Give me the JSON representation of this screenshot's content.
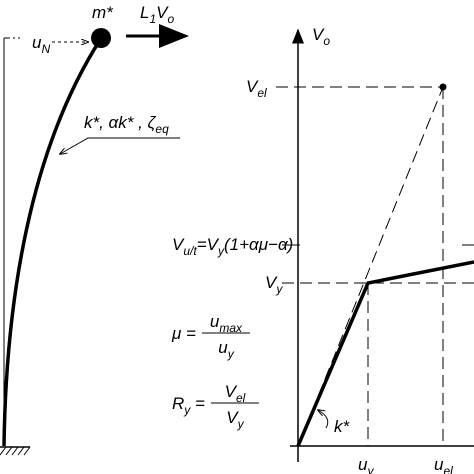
{
  "labels": {
    "mass": [
      {
        "text": "m*"
      }
    ],
    "force": [
      {
        "text": "L",
        "sub": "1"
      },
      {
        "text": "V",
        "sub": "o"
      }
    ],
    "displacement": [
      {
        "text": "u",
        "sub": "N"
      }
    ],
    "properties": [
      {
        "text": "k*, αk* , ζ",
        "sub": "eq"
      }
    ],
    "y_axis": [
      {
        "text": "V",
        "sub": "o"
      }
    ],
    "v_el": [
      {
        "text": "V",
        "sub": "el"
      }
    ],
    "v_ult": [
      {
        "text": "V",
        "sub": "u/t"
      },
      {
        "text": "=V",
        "sub": "y"
      },
      {
        "text": "(1+αμ−α)"
      }
    ],
    "v_y": [
      {
        "text": "V",
        "sub": "y"
      }
    ],
    "u_y": [
      {
        "text": "u",
        "sub": "y"
      }
    ],
    "u_el": [
      {
        "text": "u",
        "sub": "el"
      }
    ],
    "stiffness": [
      {
        "text": "k*"
      }
    ]
  },
  "formulas": {
    "ductility": {
      "lhs": [
        {
          "text": "μ ="
        }
      ],
      "num": [
        {
          "text": "u",
          "sub": "max"
        }
      ],
      "den": [
        {
          "text": "u",
          "sub": "y"
        }
      ]
    },
    "reduction": {
      "lhs": [
        {
          "text": "R",
          "sub": "y"
        },
        {
          "text": " ="
        }
      ],
      "num": [
        {
          "text": "V",
          "sub": "el"
        }
      ],
      "den": [
        {
          "text": "V",
          "sub": "y"
        }
      ]
    }
  }
}
